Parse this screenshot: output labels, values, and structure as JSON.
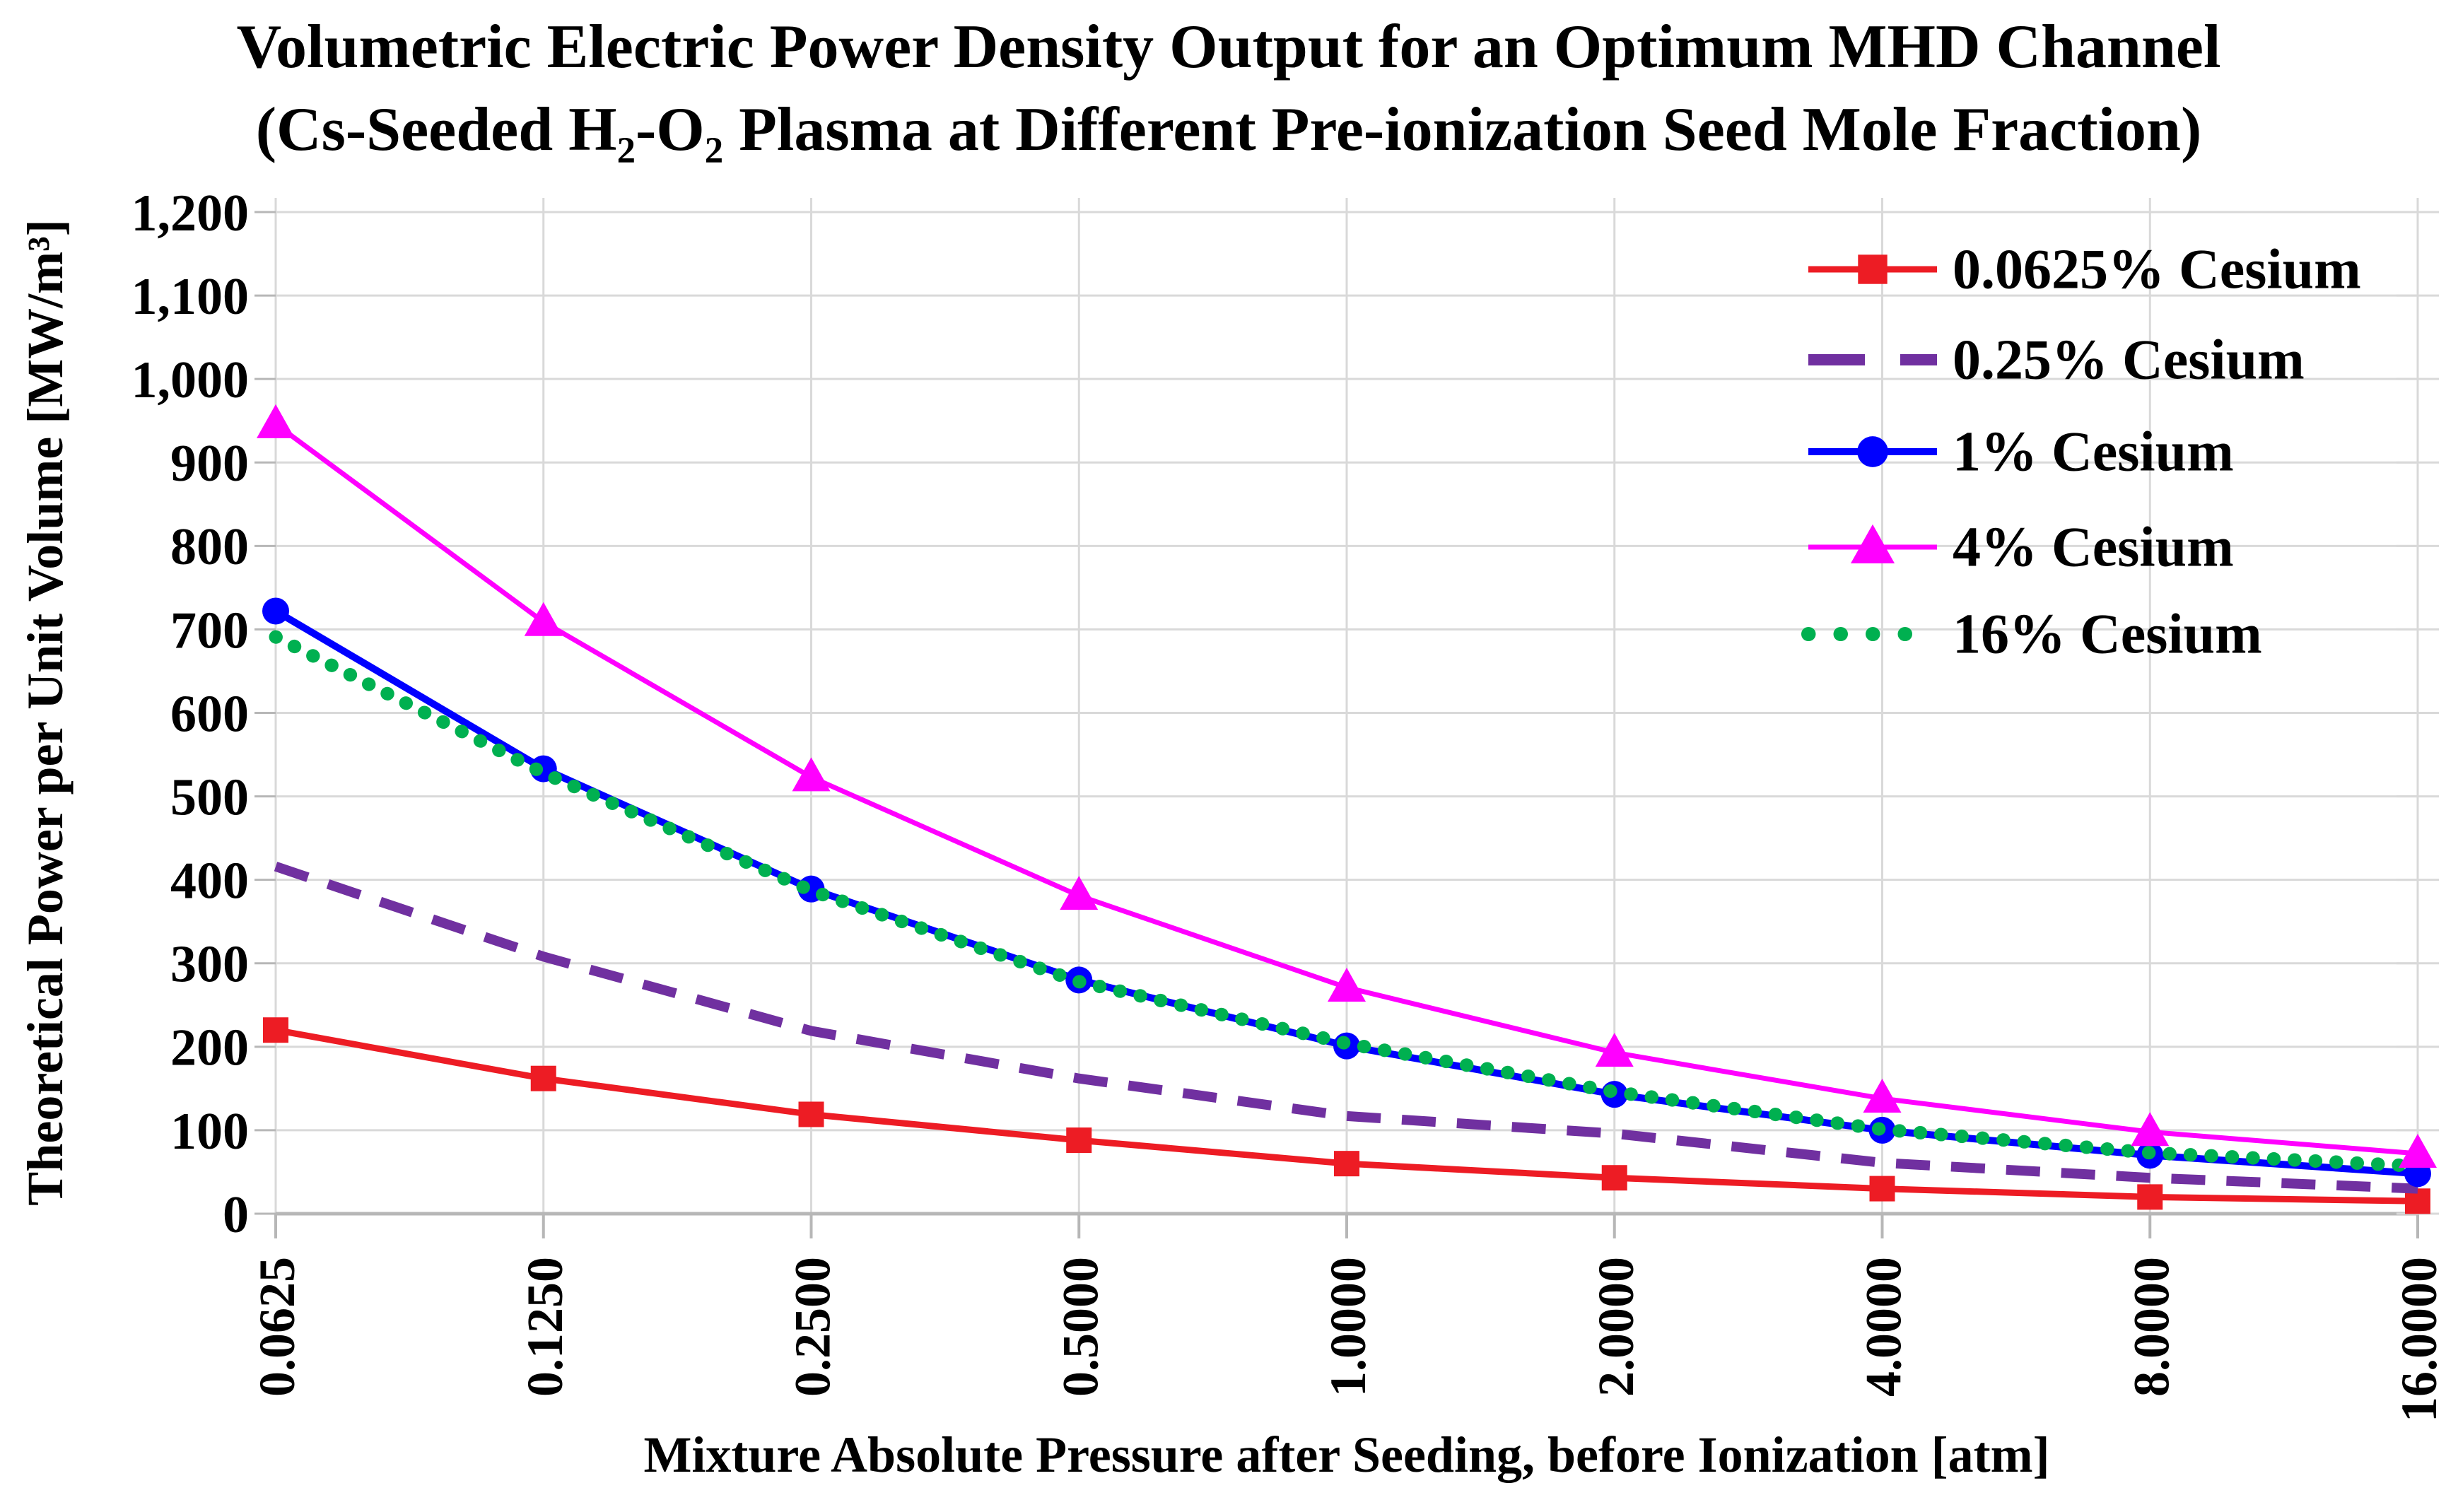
{
  "chart_data": {
    "type": "line",
    "title_line1": "Volumetric Electric Power Density Output for an Optimum MHD Channel",
    "title_line2": "(Cs-Seeded H₂-O₂ Plasma at Different Pre-ionization Seed Mole Fraction)",
    "xlabel": "Mixture Absolute Pressure after Seeding, before Ionization [atm]",
    "ylabel": "Theoretical Power per Unit Volume [MW/m³]",
    "categories": [
      0.0625,
      0.125,
      0.25,
      0.5,
      1,
      2,
      4,
      8,
      16
    ],
    "x_tick_labels": [
      "0.0625",
      "0.1250",
      "0.2500",
      "0.5000",
      "1.0000",
      "2.0000",
      "4.0000",
      "8.0000",
      "16.0000"
    ],
    "y_tick_labels": [
      "0",
      "100",
      "200",
      "300",
      "400",
      "500",
      "600",
      "700",
      "800",
      "900",
      "1,000",
      "1,100",
      "1,200"
    ],
    "ylim": [
      0,
      1200
    ],
    "y_step": 100,
    "grid": true,
    "legend_position": "top-right-inside",
    "series": [
      {
        "name": "0.0625% Cesium",
        "color": "#ed1c24",
        "line": "solid",
        "line_width": 9,
        "marker": "square",
        "z": 1,
        "values": [
          220,
          162,
          119,
          88,
          60,
          43,
          30,
          20,
          15
        ]
      },
      {
        "name": "0.25% Cesium",
        "color": "#7030a0",
        "line": "dashed",
        "line_width": 14,
        "marker": "none",
        "z": 2,
        "values": [
          416,
          308,
          219,
          162,
          117,
          96,
          61,
          43,
          30
        ]
      },
      {
        "name": "1% Cesium",
        "color": "#0000ff",
        "line": "solid",
        "line_width": 10,
        "marker": "circle",
        "z": 3,
        "values": [
          722,
          533,
          389,
          280,
          201,
          143,
          100,
          70,
          48
        ]
      },
      {
        "name": "4% Cesium",
        "color": "#ff00ff",
        "line": "solid",
        "line_width": 7,
        "marker": "triangle",
        "z": 5,
        "values": [
          946,
          709,
          523,
          381,
          271,
          193,
          138,
          98,
          72
        ]
      },
      {
        "name": "16% Cesium",
        "color": "#00b050",
        "line": "dotted",
        "line_width": 19,
        "marker": "none",
        "z": 4,
        "values": [
          691,
          528,
          387,
          278,
          204,
          146,
          101,
          73,
          57
        ]
      }
    ]
  },
  "colors": {
    "background": "#ffffff",
    "text": "#000000",
    "gridline": "#d9d9d9",
    "axis": "#b7b7b7"
  }
}
